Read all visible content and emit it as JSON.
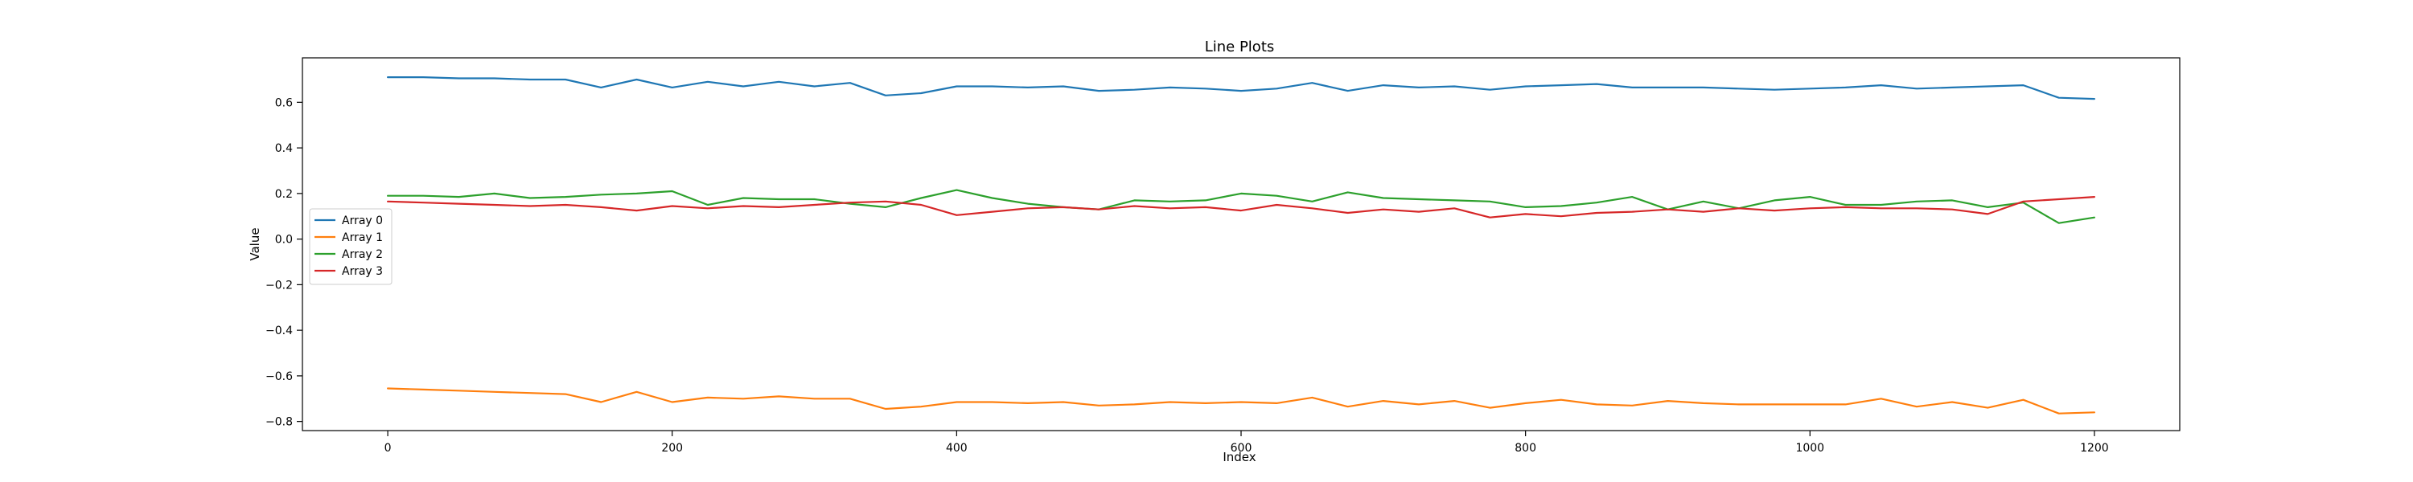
{
  "chart_data": {
    "type": "line",
    "title": "Line Plots",
    "xlabel": "Index",
    "ylabel": "Value",
    "xlim": [
      -60,
      1260
    ],
    "ylim": [
      -0.84,
      0.795
    ],
    "xticks": [
      0,
      200,
      400,
      600,
      800,
      1000,
      1200
    ],
    "yticks": [
      -0.8,
      -0.6,
      -0.4,
      -0.2,
      0.0,
      0.2,
      0.4,
      0.6
    ],
    "xtick_labels": [
      "0",
      "200",
      "400",
      "600",
      "800",
      "1000",
      "1200"
    ],
    "ytick_labels": [
      "−0.8",
      "−0.6",
      "−0.4",
      "−0.2",
      "0.0",
      "0.2",
      "0.4",
      "0.6"
    ],
    "legend_position": "center-left",
    "grid": false,
    "x": [
      0,
      25,
      50,
      75,
      100,
      125,
      150,
      175,
      200,
      225,
      250,
      275,
      300,
      325,
      350,
      375,
      400,
      425,
      450,
      475,
      500,
      525,
      550,
      575,
      600,
      625,
      650,
      675,
      700,
      725,
      750,
      775,
      800,
      825,
      850,
      875,
      900,
      925,
      950,
      975,
      1000,
      1025,
      1050,
      1075,
      1100,
      1125,
      1150,
      1175,
      1200
    ],
    "series": [
      {
        "name": "Array 0",
        "color": "#1f77b4",
        "values": [
          0.71,
          0.71,
          0.705,
          0.705,
          0.7,
          0.7,
          0.665,
          0.7,
          0.665,
          0.69,
          0.67,
          0.69,
          0.67,
          0.685,
          0.63,
          0.64,
          0.67,
          0.67,
          0.665,
          0.67,
          0.65,
          0.655,
          0.665,
          0.66,
          0.65,
          0.66,
          0.685,
          0.65,
          0.675,
          0.665,
          0.67,
          0.655,
          0.67,
          0.675,
          0.68,
          0.665,
          0.665,
          0.665,
          0.66,
          0.655,
          0.66,
          0.665,
          0.675,
          0.66,
          0.665,
          0.67,
          0.675,
          0.62,
          0.615
        ]
      },
      {
        "name": "Array 1",
        "color": "#ff7f0e",
        "values": [
          -0.655,
          -0.66,
          -0.665,
          -0.67,
          -0.675,
          -0.68,
          -0.715,
          -0.67,
          -0.715,
          -0.695,
          -0.7,
          -0.69,
          -0.7,
          -0.7,
          -0.745,
          -0.735,
          -0.715,
          -0.715,
          -0.72,
          -0.715,
          -0.73,
          -0.725,
          -0.715,
          -0.72,
          -0.715,
          -0.72,
          -0.695,
          -0.735,
          -0.71,
          -0.725,
          -0.71,
          -0.74,
          -0.72,
          -0.705,
          -0.725,
          -0.73,
          -0.71,
          -0.72,
          -0.725,
          -0.725,
          -0.725,
          -0.725,
          -0.7,
          -0.735,
          -0.715,
          -0.74,
          -0.705,
          -0.765,
          -0.76
        ]
      },
      {
        "name": "Array 2",
        "color": "#2ca02c",
        "values": [
          0.19,
          0.19,
          0.185,
          0.2,
          0.18,
          0.185,
          0.195,
          0.2,
          0.21,
          0.15,
          0.18,
          0.175,
          0.175,
          0.155,
          0.14,
          0.18,
          0.215,
          0.18,
          0.155,
          0.14,
          0.13,
          0.17,
          0.165,
          0.17,
          0.2,
          0.19,
          0.165,
          0.205,
          0.18,
          0.175,
          0.17,
          0.165,
          0.14,
          0.145,
          0.16,
          0.185,
          0.13,
          0.165,
          0.135,
          0.17,
          0.185,
          0.15,
          0.15,
          0.165,
          0.17,
          0.14,
          0.16,
          0.07,
          0.095
        ]
      },
      {
        "name": "Array 3",
        "color": "#d62728",
        "values": [
          0.165,
          0.16,
          0.155,
          0.15,
          0.145,
          0.15,
          0.14,
          0.125,
          0.145,
          0.135,
          0.145,
          0.14,
          0.15,
          0.16,
          0.165,
          0.15,
          0.105,
          0.12,
          0.135,
          0.14,
          0.13,
          0.145,
          0.135,
          0.14,
          0.125,
          0.15,
          0.135,
          0.115,
          0.13,
          0.12,
          0.135,
          0.095,
          0.11,
          0.1,
          0.115,
          0.12,
          0.13,
          0.12,
          0.135,
          0.125,
          0.135,
          0.14,
          0.135,
          0.135,
          0.13,
          0.11,
          0.165,
          0.175,
          0.185
        ]
      }
    ]
  }
}
